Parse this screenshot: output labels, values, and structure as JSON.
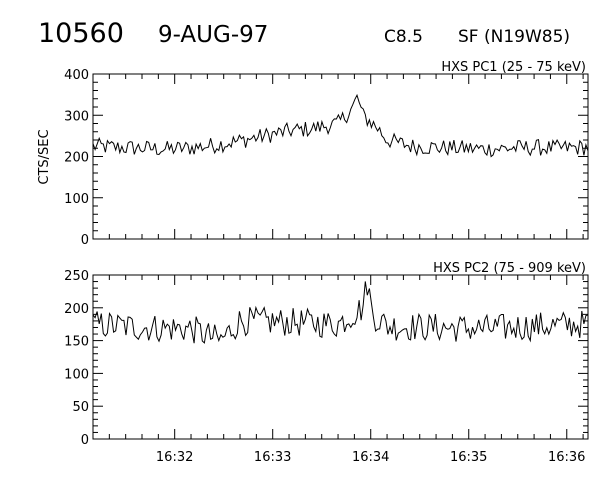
{
  "header": {
    "flare_number": "10560",
    "date": "9-AUG-97",
    "goes_class": "C8.5",
    "location": "SF (N19W85)"
  },
  "chart_data": [
    {
      "type": "line",
      "title": "HXS PC1 (25 - 75 keV)",
      "ylabel": "CTS/SEC",
      "xlabel": "",
      "ylim": [
        0,
        400
      ],
      "yticks": [
        0,
        100,
        200,
        300,
        400
      ],
      "x_unit": "minutes after 16:31:10 UT",
      "xlim": [
        0,
        5.05
      ],
      "xtick_labels": [
        "16:32",
        "16:33",
        "16:34",
        "16:35",
        "16:36"
      ],
      "xtick_values": [
        0.833,
        1.833,
        2.833,
        3.833,
        4.833
      ],
      "grid": false,
      "series": [
        {
          "name": "HXS PC1",
          "x": [
            0.0,
            0.25,
            0.5,
            0.75,
            1.0,
            1.25,
            1.5,
            1.75,
            2.0,
            2.25,
            2.5,
            2.6,
            2.65,
            2.7,
            2.75,
            2.8,
            2.9,
            3.0,
            3.25,
            3.5,
            3.75,
            4.0,
            4.25,
            4.5,
            4.75,
            5.0
          ],
          "y": [
            225,
            222,
            220,
            218,
            221,
            228,
            238,
            250,
            262,
            268,
            280,
            305,
            320,
            345,
            300,
            290,
            270,
            240,
            225,
            222,
            220,
            218,
            220,
            222,
            220,
            222
          ]
        }
      ]
    },
    {
      "type": "line",
      "title": "HXS PC2 (75 - 909 keV)",
      "ylabel": "",
      "xlabel": "",
      "ylim": [
        0,
        250
      ],
      "yticks": [
        0,
        50,
        100,
        150,
        200,
        250
      ],
      "x_unit": "minutes after 16:31:10 UT",
      "xlim": [
        0,
        5.05
      ],
      "xtick_labels": [
        "16:32",
        "16:33",
        "16:34",
        "16:35",
        "16:36"
      ],
      "xtick_values": [
        0.833,
        1.833,
        2.833,
        3.833,
        4.833
      ],
      "grid": false,
      "series": [
        {
          "name": "HXS PC2",
          "x": [
            0.0,
            0.5,
            1.0,
            1.3,
            1.5,
            2.0,
            2.5,
            2.75,
            2.8,
            2.85,
            3.0,
            3.5,
            4.0,
            4.5,
            5.0
          ],
          "y": [
            175,
            170,
            168,
            150,
            180,
            178,
            175,
            200,
            240,
            190,
            172,
            170,
            168,
            172,
            175
          ]
        }
      ]
    }
  ]
}
